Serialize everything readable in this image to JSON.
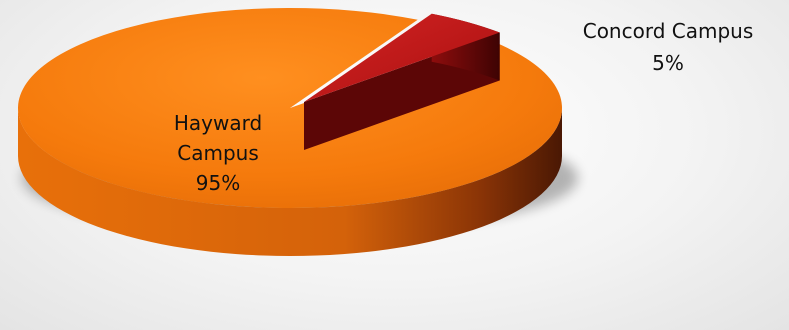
{
  "chart_data": {
    "type": "pie",
    "title": "",
    "slices": [
      {
        "label_lines": [
          "Hayward",
          "Campus"
        ],
        "percent_label": "95%",
        "value": 95,
        "color": "#f47a0d",
        "side_color": "#c85a06",
        "dark_color": "#5a1d04"
      },
      {
        "label_lines": [
          "Concord Campus"
        ],
        "percent_label": "5%",
        "value": 5,
        "color": "#c41a1a",
        "side_color": "#8e0d0d",
        "dark_color": "#4a0404"
      }
    ],
    "style": "3d",
    "legend": "none"
  }
}
